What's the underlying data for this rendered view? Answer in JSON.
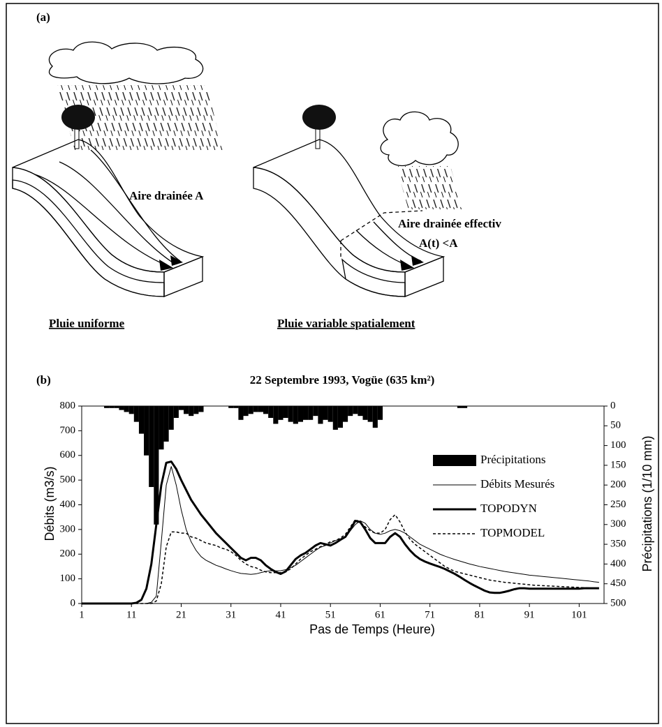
{
  "panel_a": {
    "label": "(a)",
    "area_uniform": "Aire drainée A",
    "area_effective_1": "Aire drainée effectiv",
    "area_effective_2": "A(t) <A",
    "caption_uniform": "Pluie uniforme",
    "caption_variable": "Pluie variable spatialement"
  },
  "chart_data": {
    "type": "line",
    "panel_label": "(b)",
    "title": "22 Septembre 1993, Vogüe (635 km²)",
    "x_label": "Pas de Temps (Heure)",
    "y_label": "Débits (m3/s)",
    "y2_label": "Précipitations (1/10 mm)",
    "x": [
      1,
      2,
      3,
      4,
      5,
      6,
      7,
      8,
      9,
      10,
      11,
      12,
      13,
      14,
      15,
      16,
      17,
      18,
      19,
      20,
      21,
      22,
      23,
      24,
      25,
      26,
      27,
      28,
      29,
      30,
      31,
      32,
      33,
      34,
      35,
      36,
      37,
      38,
      39,
      40,
      41,
      42,
      43,
      44,
      45,
      46,
      47,
      48,
      49,
      50,
      51,
      52,
      53,
      54,
      55,
      56,
      57,
      58,
      59,
      60,
      61,
      62,
      63,
      64,
      65,
      66,
      67,
      68,
      69,
      70,
      71,
      72,
      73,
      74,
      75,
      76,
      77,
      78,
      79,
      80,
      81,
      82,
      83,
      84,
      85,
      86,
      87,
      88,
      89,
      90,
      91,
      92,
      93,
      94,
      95,
      96,
      97,
      98,
      99,
      100,
      101,
      102,
      103,
      104,
      105
    ],
    "series": [
      {
        "name": "Précipitations",
        "kind": "bar",
        "axis": "y2",
        "color": "#000000",
        "values": [
          0,
          0,
          0,
          0,
          0,
          5,
          5,
          5,
          10,
          15,
          20,
          40,
          70,
          125,
          205,
          300,
          110,
          90,
          60,
          30,
          10,
          20,
          25,
          20,
          15,
          0,
          0,
          0,
          0,
          0,
          5,
          5,
          35,
          25,
          20,
          15,
          15,
          20,
          30,
          45,
          35,
          30,
          40,
          45,
          40,
          35,
          35,
          25,
          45,
          35,
          40,
          60,
          55,
          40,
          25,
          20,
          25,
          35,
          40,
          55,
          35,
          0,
          0,
          0,
          0,
          0,
          0,
          0,
          0,
          0,
          0,
          0,
          0,
          0,
          0,
          0,
          5,
          5,
          0,
          0,
          0,
          0,
          0,
          0,
          0,
          0,
          0,
          0,
          0,
          0,
          0,
          0,
          0,
          0,
          0,
          0,
          0,
          0,
          0,
          0,
          0,
          0,
          0,
          0,
          0
        ]
      },
      {
        "name": "Débits Mesurés",
        "kind": "line",
        "color": "#000000",
        "line_width": 1,
        "dashed": false,
        "values": [
          0,
          0,
          0,
          0,
          0,
          0,
          0,
          0,
          0,
          0,
          0,
          0,
          0,
          0,
          5,
          30,
          250,
          480,
          555,
          480,
          380,
          300,
          250,
          215,
          190,
          175,
          165,
          155,
          148,
          140,
          133,
          127,
          122,
          120,
          118,
          120,
          125,
          130,
          133,
          132,
          133,
          137,
          145,
          155,
          170,
          185,
          200,
          215,
          228,
          235,
          245,
          255,
          262,
          272,
          295,
          320,
          335,
          325,
          300,
          285,
          280,
          285,
          295,
          300,
          295,
          285,
          270,
          255,
          240,
          230,
          220,
          210,
          200,
          192,
          185,
          178,
          172,
          166,
          160,
          155,
          150,
          146,
          142,
          138,
          134,
          130,
          127,
          124,
          121,
          118,
          115,
          113,
          111,
          109,
          107,
          105,
          103,
          101,
          99,
          97,
          95,
          93,
          91,
          88,
          86
        ]
      },
      {
        "name": "TOPODYN",
        "kind": "line",
        "color": "#000000",
        "line_width": 3,
        "dashed": false,
        "values": [
          0,
          0,
          0,
          0,
          0,
          0,
          0,
          0,
          0,
          0,
          0,
          3,
          15,
          60,
          160,
          320,
          480,
          570,
          575,
          545,
          500,
          460,
          420,
          390,
          360,
          335,
          310,
          285,
          265,
          245,
          225,
          205,
          185,
          175,
          185,
          185,
          175,
          155,
          140,
          128,
          120,
          130,
          155,
          180,
          195,
          205,
          220,
          235,
          245,
          240,
          235,
          245,
          258,
          270,
          300,
          335,
          330,
          300,
          265,
          245,
          245,
          245,
          270,
          285,
          270,
          240,
          215,
          195,
          180,
          170,
          162,
          155,
          148,
          140,
          130,
          120,
          108,
          95,
          83,
          72,
          62,
          52,
          45,
          43,
          43,
          47,
          52,
          58,
          62,
          62,
          60,
          60,
          60,
          60,
          60,
          60,
          60,
          60,
          60,
          60,
          60,
          62,
          62,
          62,
          62
        ]
      },
      {
        "name": "TOPMODEL",
        "kind": "line",
        "color": "#000000",
        "line_width": 1.5,
        "dashed": true,
        "values": [
          0,
          0,
          0,
          0,
          0,
          0,
          0,
          0,
          0,
          0,
          0,
          0,
          0,
          0,
          0,
          10,
          80,
          230,
          290,
          290,
          285,
          285,
          270,
          265,
          255,
          245,
          240,
          235,
          225,
          220,
          210,
          195,
          175,
          160,
          150,
          145,
          135,
          128,
          125,
          125,
          125,
          130,
          140,
          160,
          180,
          195,
          210,
          220,
          230,
          240,
          250,
          255,
          265,
          280,
          310,
          340,
          330,
          310,
          295,
          285,
          285,
          300,
          340,
          360,
          330,
          290,
          260,
          240,
          225,
          210,
          195,
          180,
          165,
          150,
          140,
          130,
          125,
          120,
          115,
          110,
          105,
          100,
          95,
          92,
          89,
          86,
          84,
          82,
          80,
          78,
          76,
          74,
          73,
          72,
          71,
          70,
          69,
          68,
          67,
          66,
          65,
          64,
          63,
          63,
          62
        ]
      }
    ],
    "xlim": [
      1,
      106
    ],
    "xticks": [
      1,
      11,
      21,
      31,
      41,
      51,
      61,
      71,
      81,
      91,
      101
    ],
    "ylim": [
      0,
      800
    ],
    "yticks": [
      0,
      100,
      200,
      300,
      400,
      500,
      600,
      700,
      800
    ],
    "y2lim": [
      500,
      0
    ],
    "y2ticks": [
      0,
      50,
      100,
      150,
      200,
      250,
      300,
      350,
      400,
      450,
      500
    ],
    "legend": "upper right"
  }
}
